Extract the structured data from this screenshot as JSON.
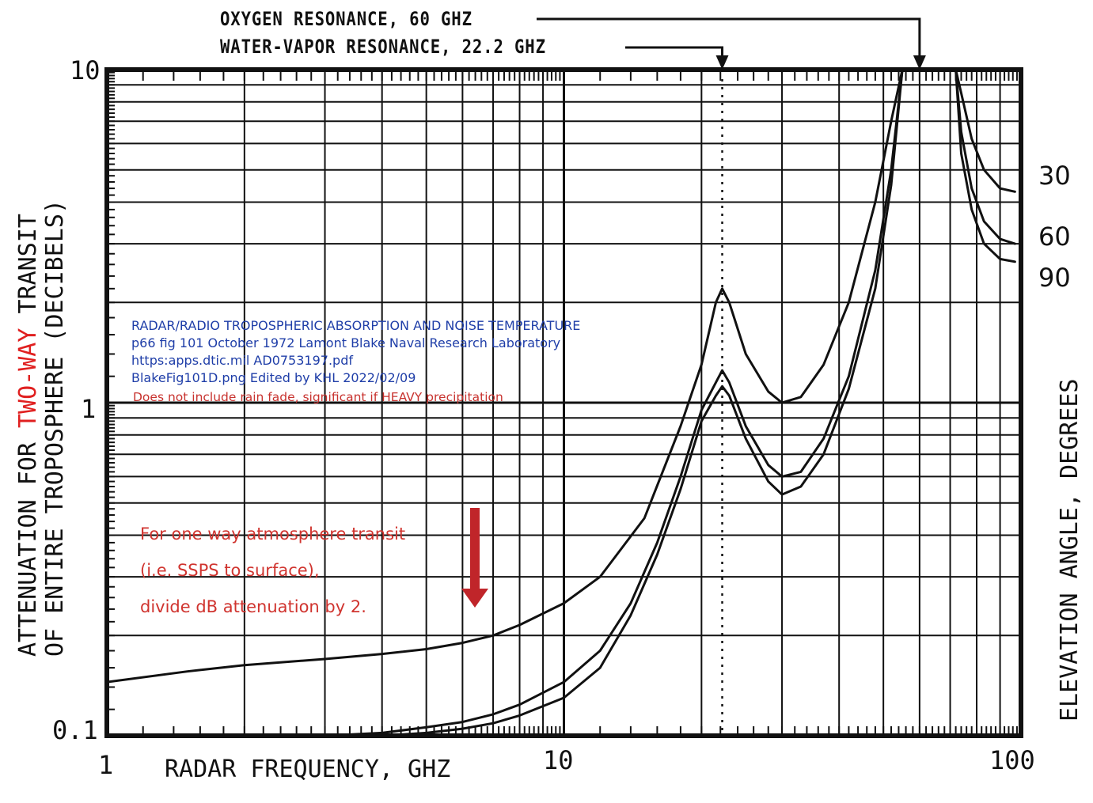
{
  "chart_data": {
    "type": "line",
    "title": "RADAR/RADIO TROPOSPHERIC ABSORPTION AND NOISE TEMPERATURE",
    "xlabel": "RADAR FREQUENCY, GHZ",
    "ylabel_line1_pre": "ATTENUATION FOR ",
    "ylabel_line1_highlight": "TWO-WAY",
    "ylabel_line1_post": " TRANSIT",
    "ylabel_line2": "OF ENTIRE TROPOSPHERE (DECIBELS)",
    "right_label": "ELEVATION ANGLE, DEGREES",
    "x_scale": "log",
    "y_scale": "log",
    "xlim": [
      1,
      100
    ],
    "ylim": [
      0.1,
      10
    ],
    "x_tick_labels": [
      "1",
      "10",
      "100"
    ],
    "y_tick_labels": [
      "0.1",
      "1",
      "10"
    ],
    "grid": true,
    "annotations": {
      "oxygen": "OXYGEN RESONANCE, 60 GHZ",
      "water_vapor": "WATER-VAPOR RESONANCE, 22.2 GHZ",
      "oxygen_freq": 60,
      "water_vapor_freq": 22.2
    },
    "series": [
      {
        "name": "30",
        "points": [
          [
            1,
            0.145
          ],
          [
            1.5,
            0.156
          ],
          [
            2,
            0.163
          ],
          [
            3,
            0.17
          ],
          [
            4,
            0.176
          ],
          [
            5,
            0.182
          ],
          [
            6,
            0.19
          ],
          [
            7,
            0.2
          ],
          [
            8,
            0.215
          ],
          [
            10,
            0.25
          ],
          [
            12,
            0.3
          ],
          [
            15,
            0.45
          ],
          [
            18,
            0.85
          ],
          [
            20,
            1.3
          ],
          [
            21.5,
            2.0
          ],
          [
            22.2,
            2.2
          ],
          [
            23,
            2.0
          ],
          [
            25,
            1.4
          ],
          [
            28,
            1.08
          ],
          [
            30,
            1.0
          ],
          [
            33,
            1.04
          ],
          [
            37,
            1.3
          ],
          [
            42,
            2.0
          ],
          [
            48,
            4.0
          ],
          [
            52,
            7.0
          ],
          [
            55,
            10
          ]
        ]
      },
      {
        "name": "60",
        "points": [
          [
            3,
            0.1
          ],
          [
            4,
            0.102
          ],
          [
            5,
            0.106
          ],
          [
            6,
            0.11
          ],
          [
            7,
            0.116
          ],
          [
            8,
            0.124
          ],
          [
            10,
            0.145
          ],
          [
            12,
            0.18
          ],
          [
            14,
            0.25
          ],
          [
            16,
            0.38
          ],
          [
            18,
            0.6
          ],
          [
            20,
            0.95
          ],
          [
            21.5,
            1.15
          ],
          [
            22.2,
            1.25
          ],
          [
            23,
            1.15
          ],
          [
            25,
            0.85
          ],
          [
            28,
            0.65
          ],
          [
            30,
            0.6
          ],
          [
            33,
            0.62
          ],
          [
            37,
            0.78
          ],
          [
            42,
            1.2
          ],
          [
            48,
            2.5
          ],
          [
            52,
            5.0
          ],
          [
            55,
            10
          ]
        ]
      },
      {
        "name": "90",
        "points": [
          [
            4,
            0.1
          ],
          [
            5,
            0.102
          ],
          [
            6,
            0.105
          ],
          [
            7,
            0.109
          ],
          [
            8,
            0.115
          ],
          [
            10,
            0.13
          ],
          [
            12,
            0.16
          ],
          [
            14,
            0.23
          ],
          [
            16,
            0.35
          ],
          [
            18,
            0.55
          ],
          [
            20,
            0.88
          ],
          [
            21.5,
            1.05
          ],
          [
            22.2,
            1.12
          ],
          [
            23,
            1.05
          ],
          [
            25,
            0.78
          ],
          [
            28,
            0.58
          ],
          [
            30,
            0.53
          ],
          [
            33,
            0.56
          ],
          [
            37,
            0.7
          ],
          [
            42,
            1.1
          ],
          [
            48,
            2.2
          ],
          [
            52,
            4.5
          ],
          [
            55,
            10
          ]
        ]
      },
      {
        "name": "30",
        "points": [
          [
            72,
            10
          ],
          [
            74,
            8.5
          ],
          [
            78,
            6.2
          ],
          [
            83,
            5.0
          ],
          [
            90,
            4.4
          ],
          [
            97,
            4.3
          ]
        ]
      },
      {
        "name": "60",
        "points": [
          [
            72,
            10
          ],
          [
            74,
            6.5
          ],
          [
            78,
            4.4
          ],
          [
            83,
            3.5
          ],
          [
            90,
            3.1
          ],
          [
            97,
            3.0
          ]
        ]
      },
      {
        "name": "90",
        "points": [
          [
            72,
            10
          ],
          [
            74,
            5.6
          ],
          [
            78,
            3.8
          ],
          [
            83,
            3.0
          ],
          [
            90,
            2.7
          ],
          [
            97,
            2.65
          ]
        ]
      }
    ],
    "elevation_labels": [
      "30",
      "60",
      "90"
    ]
  },
  "notes": {
    "blue_lines": [
      "RADAR/RADIO TROPOSPHERIC ABSORPTION AND NOISE TEMPERATURE",
      "p66 fig 101 October 1972 Lamont Blake  Naval Research Laboratory",
      "https:apps.dtic.mil  AD0753197.pdf",
      "BlakeFig101D.png   Edited by KHL  2022/02/09"
    ],
    "rain_fade": "Does not include rain fade, significant if  HEAVY precipitation",
    "one_way_lines": [
      "For one way atmosphere transit",
      "(i.e. SSPS to surface),",
      "divide dB attenuation by 2."
    ]
  },
  "colors": {
    "ink": "#111111",
    "highlight_red": "#e02020",
    "note_blue": "#1f3ea8",
    "note_red": "#d0342f",
    "arrow_red": "#c0252a"
  }
}
